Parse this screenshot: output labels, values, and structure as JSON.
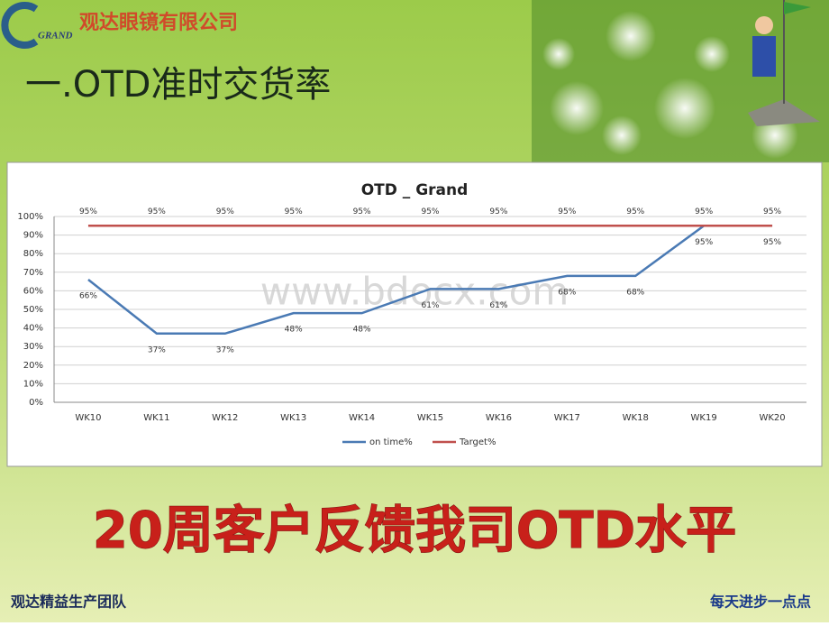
{
  "slide": {
    "logo": "GRAND",
    "company": "观达眼镜有限公司",
    "heading": "一.OTD准时交货率",
    "headline": "20周客户反馈我司OTD水平",
    "footer_left": "观达精益生产团队",
    "footer_right": "每天进步一点点",
    "watermark": "www.bdocx.com"
  },
  "chart_data": {
    "type": "line",
    "title": "OTD _ Grand",
    "categories": [
      "WK10",
      "WK11",
      "WK12",
      "WK13",
      "WK14",
      "WK15",
      "WK16",
      "WK17",
      "WK18",
      "WK19",
      "WK20"
    ],
    "series": [
      {
        "name": "on time%",
        "color": "#4a7ab4",
        "values": [
          66,
          37,
          37,
          48,
          48,
          61,
          61,
          68,
          68,
          95,
          95
        ],
        "value_labels": [
          "66%",
          "37%",
          "37%",
          "48%",
          "48%",
          "61%",
          "61%",
          "68%",
          "68%",
          "95%",
          "95%"
        ]
      },
      {
        "name": "Target%",
        "color": "#c0504d",
        "values": [
          95,
          95,
          95,
          95,
          95,
          95,
          95,
          95,
          95,
          95,
          95
        ],
        "value_labels": [
          "95%",
          "95%",
          "95%",
          "95%",
          "95%",
          "95%",
          "95%",
          "95%",
          "95%",
          "95%",
          "95%"
        ]
      }
    ],
    "ylim": [
      0,
      100
    ],
    "yticks": [
      {
        "value": 0,
        "label": "0%"
      },
      {
        "value": 10,
        "label": "10%"
      },
      {
        "value": 20,
        "label": "20%"
      },
      {
        "value": 30,
        "label": "30%"
      },
      {
        "value": 40,
        "label": "40%"
      },
      {
        "value": 50,
        "label": "50%"
      },
      {
        "value": 60,
        "label": "60%"
      },
      {
        "value": 70,
        "label": "70%"
      },
      {
        "value": 80,
        "label": "80%"
      },
      {
        "value": 90,
        "label": "90%"
      },
      {
        "value": 100,
        "label": "100%"
      }
    ],
    "grid": true,
    "legend": "bottom"
  }
}
